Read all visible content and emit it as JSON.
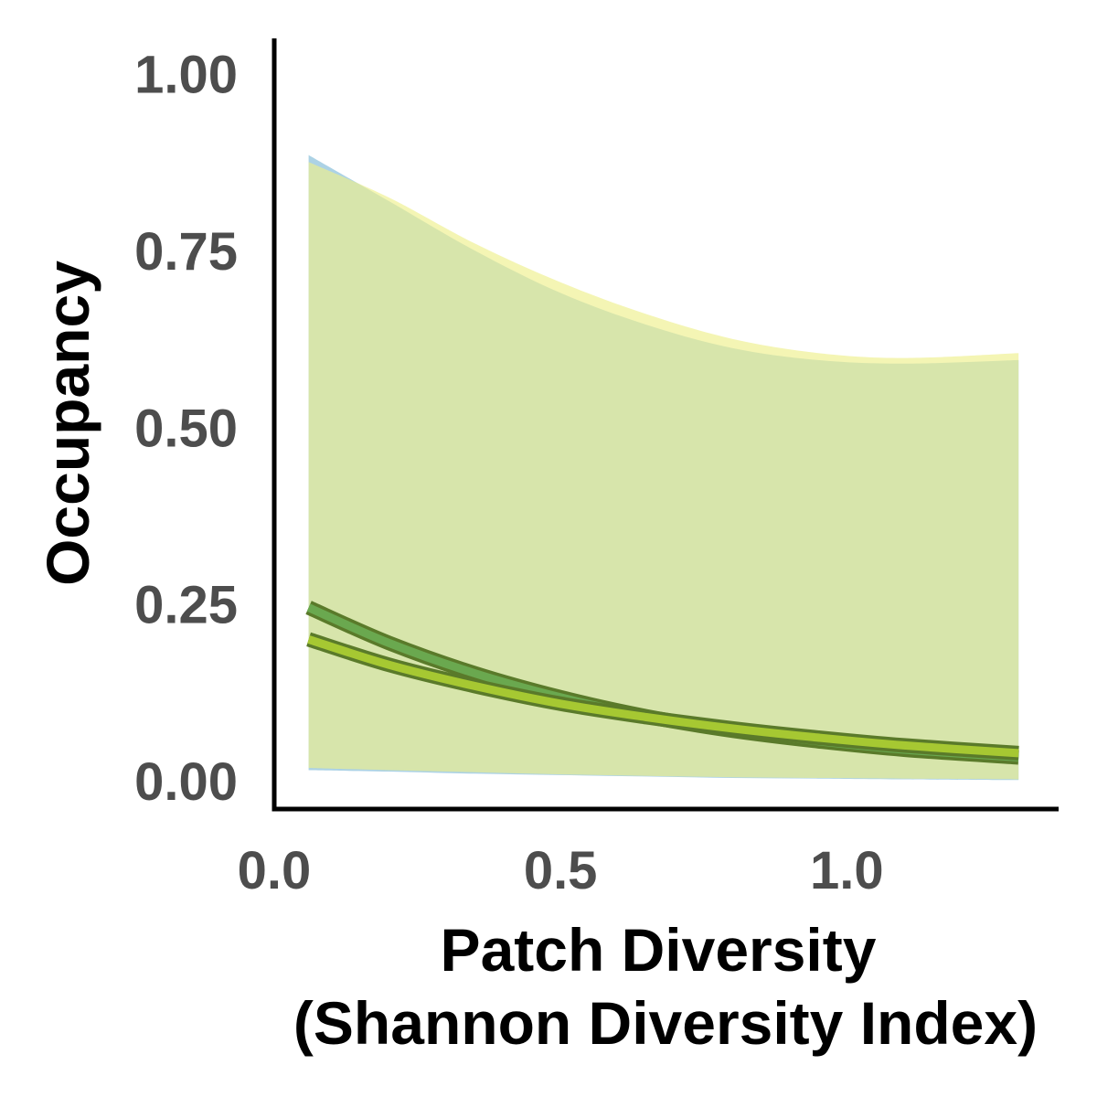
{
  "chart_data": {
    "type": "area",
    "xlabel": "Patch Diversity",
    "xlabel_line2": "(Shannon Diversity Index)",
    "ylabel": "Occupancy",
    "xlim": [
      0.0,
      1.37
    ],
    "ylim": [
      -0.04,
      1.05
    ],
    "x_ticks": [
      0.0,
      0.5,
      1.0
    ],
    "x_tick_labels": [
      "0.0",
      "0.5",
      "1.0"
    ],
    "y_ticks": [
      0.0,
      0.25,
      0.5,
      0.75,
      1.0
    ],
    "y_tick_labels": [
      "0.00",
      "0.25",
      "0.50",
      "0.75",
      "1.00"
    ],
    "grid": false,
    "legend": "none",
    "x": [
      0.06,
      0.2,
      0.35,
      0.5,
      0.65,
      0.8,
      0.95,
      1.1,
      1.3
    ],
    "series": [
      {
        "color": "#6aa84f",
        "band_color": "#9ecae1",
        "mean": [
          0.245,
          0.195,
          0.152,
          0.118,
          0.091,
          0.071,
          0.056,
          0.044,
          0.033
        ],
        "upper": [
          0.885,
          0.82,
          0.75,
          0.69,
          0.645,
          0.612,
          0.595,
          0.59,
          0.595
        ],
        "lower": [
          0.015,
          0.013,
          0.01,
          0.008,
          0.006,
          0.004,
          0.003,
          0.002,
          0.001
        ]
      },
      {
        "color": "#a6c832",
        "band_color": "#eef08c",
        "mean": [
          0.2,
          0.164,
          0.134,
          0.109,
          0.09,
          0.074,
          0.061,
          0.05,
          0.039
        ],
        "upper": [
          0.875,
          0.825,
          0.76,
          0.705,
          0.66,
          0.625,
          0.605,
          0.598,
          0.605
        ],
        "lower": [
          0.018,
          0.015,
          0.012,
          0.009,
          0.007,
          0.005,
          0.004,
          0.003,
          0.002
        ]
      }
    ]
  }
}
